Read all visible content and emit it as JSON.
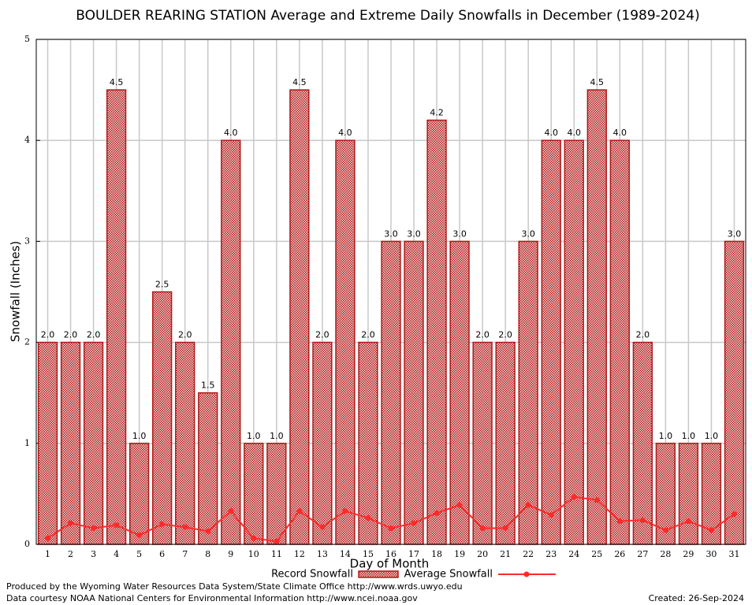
{
  "chart_data": {
    "type": "bar",
    "title": "BOULDER REARING STATION Average and Extreme Daily Snowfalls in December (1989-2024)",
    "x_label": "Day of Month",
    "y_label": "Snowfall (Inches)",
    "categories": [
      "1",
      "2",
      "3",
      "4",
      "5",
      "6",
      "7",
      "8",
      "9",
      "10",
      "11",
      "12",
      "13",
      "14",
      "15",
      "16",
      "17",
      "18",
      "19",
      "20",
      "21",
      "22",
      "23",
      "24",
      "25",
      "26",
      "27",
      "28",
      "29",
      "30",
      "31"
    ],
    "series": [
      {
        "name": "Record Snowfall",
        "type": "bar",
        "color": "#b01818",
        "values": [
          2,
          2,
          2,
          4.5,
          1,
          2.5,
          2,
          1.5,
          4,
          1,
          1,
          4.5,
          2,
          4,
          2,
          3,
          3,
          4.2,
          3,
          2,
          2,
          3,
          4,
          4,
          4.5,
          4,
          2,
          1,
          1,
          1,
          3
        ],
        "value_labels": [
          "2.0",
          "2.0",
          "2.0",
          "4.5",
          "1.0",
          "2.5",
          "2.0",
          "1.5",
          "4.0",
          "1.0",
          "1.0",
          "4.5",
          "2.0",
          "4.0",
          "2.0",
          "3.0",
          "3.0",
          "4.2",
          "3.0",
          "2.0",
          "2.0",
          "3.0",
          "4.0",
          "4.0",
          "4.5",
          "4.0",
          "2.0",
          "1.0",
          "1.0",
          "1.0",
          "3.0"
        ]
      },
      {
        "name": "Average Snowfall",
        "type": "line",
        "color": "#ff2a2a",
        "values": [
          0.06,
          0.21,
          0.16,
          0.19,
          0.09,
          0.2,
          0.17,
          0.13,
          0.33,
          0.06,
          0.03,
          0.33,
          0.17,
          0.33,
          0.26,
          0.16,
          0.21,
          0.31,
          0.39,
          0.16,
          0.16,
          0.39,
          0.29,
          0.47,
          0.44,
          0.23,
          0.24,
          0.14,
          0.23,
          0.14,
          0.3
        ]
      }
    ],
    "ylim": [
      0,
      5
    ],
    "yticks": [
      0,
      1,
      2,
      3,
      4,
      5
    ],
    "grid": true,
    "notes": [
      "Produced by the Wyoming Water Resources Data System/State Climate Office http://www.wrds.uwyo.edu",
      "Data courtesy NOAA National Centers for Environmental Information http://www.ncei.noaa.gov"
    ],
    "created": "Created: 26-Sep-2024"
  }
}
